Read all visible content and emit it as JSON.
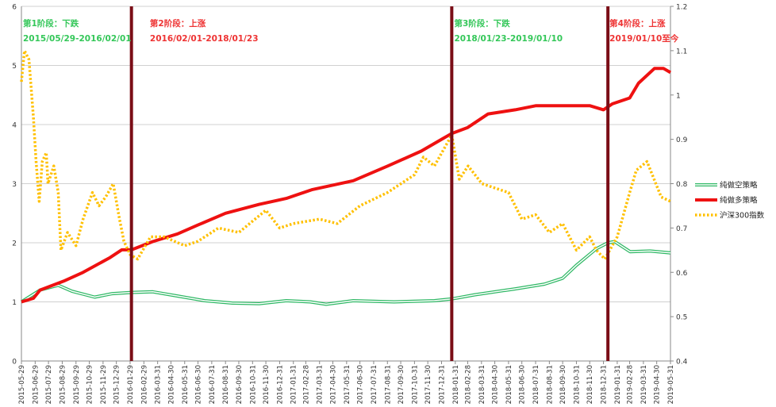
{
  "chart_data": {
    "type": "line",
    "y_left": {
      "ylim": [
        0,
        6
      ],
      "ticks": [
        "0",
        "1",
        "2",
        "3",
        "4",
        "5",
        "6"
      ]
    },
    "y_right": {
      "ylim": [
        0.4,
        1.2
      ],
      "ticks": [
        "0.4",
        "0.5",
        "0.6",
        "0.7",
        "0.8",
        "0.9",
        "1",
        "1.1",
        "1.2"
      ]
    },
    "x_range": [
      "2015-05-29",
      "2019-05-31"
    ],
    "x_ticks": [
      "2015-05-29",
      "2015-06-29",
      "2015-07-29",
      "2015-08-29",
      "2015-09-29",
      "2015-10-29",
      "2015-11-29",
      "2015-12-29",
      "2016-01-29",
      "2016-02-29",
      "2016-03-31",
      "2016-04-30",
      "2016-05-31",
      "2016-06-30",
      "2016-07-31",
      "2016-08-31",
      "2016-09-30",
      "2016-10-31",
      "2016-11-30",
      "2016-12-31",
      "2017-01-31",
      "2017-02-28",
      "2017-03-31",
      "2017-04-30",
      "2017-05-31",
      "2017-06-30",
      "2017-07-31",
      "2017-08-31",
      "2017-09-30",
      "2017-10-31",
      "2017-11-30",
      "2017-12-31",
      "2018-01-31",
      "2018-02-28",
      "2018-03-31",
      "2018-04-30",
      "2018-05-31",
      "2018-06-30",
      "2018-07-31",
      "2018-08-31",
      "2018-09-30",
      "2018-10-31",
      "2018-11-30",
      "2018-12-31",
      "2019-01-31",
      "2019-02-28",
      "2019-03-31",
      "2019-04-30",
      "2019-05-31"
    ],
    "grid": true,
    "legend_position": "right",
    "series": [
      {
        "name": "纯做空策略",
        "axis": "left",
        "color": "#2fb865",
        "style": "double-line",
        "points": [
          [
            "2015-05-29",
            1.0
          ],
          [
            "2015-07-10",
            1.2
          ],
          [
            "2015-08-20",
            1.28
          ],
          [
            "2015-09-20",
            1.18
          ],
          [
            "2015-11-10",
            1.08
          ],
          [
            "2015-12-20",
            1.14
          ],
          [
            "2016-02-01",
            1.16
          ],
          [
            "2016-03-20",
            1.17
          ],
          [
            "2016-05-15",
            1.1
          ],
          [
            "2016-07-15",
            1.02
          ],
          [
            "2016-09-15",
            0.98
          ],
          [
            "2016-11-15",
            0.97
          ],
          [
            "2017-01-15",
            1.02
          ],
          [
            "2017-03-10",
            1.0
          ],
          [
            "2017-04-15",
            0.96
          ],
          [
            "2017-06-15",
            1.02
          ],
          [
            "2017-09-15",
            1.0
          ],
          [
            "2017-12-15",
            1.02
          ],
          [
            "2018-01-23",
            1.05
          ],
          [
            "2018-03-15",
            1.12
          ],
          [
            "2018-06-15",
            1.22
          ],
          [
            "2018-08-20",
            1.3
          ],
          [
            "2018-09-30",
            1.4
          ],
          [
            "2018-10-31",
            1.62
          ],
          [
            "2018-12-15",
            1.9
          ],
          [
            "2019-01-10",
            2.0
          ],
          [
            "2019-01-25",
            2.02
          ],
          [
            "2019-03-01",
            1.85
          ],
          [
            "2019-04-15",
            1.86
          ],
          [
            "2019-05-31",
            1.83
          ]
        ]
      },
      {
        "name": "纯做多策略",
        "axis": "left",
        "color": "#ee1111",
        "style": "thick-line",
        "points": [
          [
            "2015-05-29",
            1.0
          ],
          [
            "2015-06-25",
            1.06
          ],
          [
            "2015-07-10",
            1.2
          ],
          [
            "2015-09-01",
            1.35
          ],
          [
            "2015-10-15",
            1.5
          ],
          [
            "2015-12-15",
            1.75
          ],
          [
            "2016-01-10",
            1.88
          ],
          [
            "2016-02-01",
            1.88
          ],
          [
            "2016-03-20",
            2.02
          ],
          [
            "2016-05-15",
            2.15
          ],
          [
            "2016-06-30",
            2.3
          ],
          [
            "2016-08-31",
            2.5
          ],
          [
            "2016-11-15",
            2.65
          ],
          [
            "2017-01-15",
            2.75
          ],
          [
            "2017-03-15",
            2.9
          ],
          [
            "2017-06-15",
            3.05
          ],
          [
            "2017-09-01",
            3.3
          ],
          [
            "2017-11-15",
            3.55
          ],
          [
            "2017-12-31",
            3.75
          ],
          [
            "2018-01-23",
            3.85
          ],
          [
            "2018-02-28",
            3.95
          ],
          [
            "2018-04-15",
            4.18
          ],
          [
            "2018-06-15",
            4.25
          ],
          [
            "2018-08-01",
            4.32
          ],
          [
            "2018-10-01",
            4.32
          ],
          [
            "2018-11-30",
            4.32
          ],
          [
            "2018-12-31",
            4.25
          ],
          [
            "2019-01-20",
            4.35
          ],
          [
            "2019-02-28",
            4.45
          ],
          [
            "2019-03-20",
            4.7
          ],
          [
            "2019-04-25",
            4.95
          ],
          [
            "2019-05-15",
            4.95
          ],
          [
            "2019-05-31",
            4.88
          ]
        ]
      },
      {
        "name": "沪深300指数",
        "axis": "right",
        "color": "#ffc000",
        "style": "dotted",
        "points": [
          [
            "2015-05-29",
            1.03
          ],
          [
            "2015-06-05",
            1.1
          ],
          [
            "2015-06-15",
            1.08
          ],
          [
            "2015-06-25",
            0.95
          ],
          [
            "2015-07-01",
            0.85
          ],
          [
            "2015-07-08",
            0.76
          ],
          [
            "2015-07-15",
            0.85
          ],
          [
            "2015-07-24",
            0.87
          ],
          [
            "2015-07-28",
            0.8
          ],
          [
            "2015-08-10",
            0.84
          ],
          [
            "2015-08-20",
            0.78
          ],
          [
            "2015-08-26",
            0.65
          ],
          [
            "2015-09-10",
            0.69
          ],
          [
            "2015-09-29",
            0.66
          ],
          [
            "2015-10-15",
            0.72
          ],
          [
            "2015-11-05",
            0.78
          ],
          [
            "2015-11-20",
            0.75
          ],
          [
            "2015-12-05",
            0.77
          ],
          [
            "2015-12-22",
            0.8
          ],
          [
            "2016-01-05",
            0.72
          ],
          [
            "2016-01-15",
            0.67
          ],
          [
            "2016-01-29",
            0.64
          ],
          [
            "2016-02-15",
            0.63
          ],
          [
            "2016-03-15",
            0.68
          ],
          [
            "2016-04-15",
            0.68
          ],
          [
            "2016-05-31",
            0.66
          ],
          [
            "2016-06-30",
            0.67
          ],
          [
            "2016-08-15",
            0.7
          ],
          [
            "2016-09-30",
            0.69
          ],
          [
            "2016-11-30",
            0.74
          ],
          [
            "2016-12-31",
            0.7
          ],
          [
            "2017-01-31",
            0.71
          ],
          [
            "2017-03-31",
            0.72
          ],
          [
            "2017-05-10",
            0.71
          ],
          [
            "2017-06-30",
            0.75
          ],
          [
            "2017-08-31",
            0.78
          ],
          [
            "2017-10-31",
            0.82
          ],
          [
            "2017-11-20",
            0.86
          ],
          [
            "2017-12-15",
            0.84
          ],
          [
            "2018-01-23",
            0.91
          ],
          [
            "2018-02-09",
            0.81
          ],
          [
            "2018-03-01",
            0.84
          ],
          [
            "2018-04-01",
            0.8
          ],
          [
            "2018-05-01",
            0.79
          ],
          [
            "2018-05-31",
            0.78
          ],
          [
            "2018-06-30",
            0.72
          ],
          [
            "2018-07-31",
            0.73
          ],
          [
            "2018-08-31",
            0.69
          ],
          [
            "2018-09-30",
            0.71
          ],
          [
            "2018-10-31",
            0.65
          ],
          [
            "2018-11-30",
            0.68
          ],
          [
            "2018-12-15",
            0.65
          ],
          [
            "2019-01-03",
            0.63
          ],
          [
            "2019-01-31",
            0.68
          ],
          [
            "2019-02-28",
            0.78
          ],
          [
            "2019-03-15",
            0.83
          ],
          [
            "2019-04-08",
            0.85
          ],
          [
            "2019-04-20",
            0.82
          ],
          [
            "2019-05-10",
            0.77
          ],
          [
            "2019-05-31",
            0.76
          ]
        ]
      }
    ],
    "phases": [
      {
        "divider": "2016-02-01",
        "label": "第1阶段：下跌",
        "range": "2015/05/29-2016/02/01",
        "color": "#34c759",
        "label_at": "2015-05-29"
      },
      {
        "divider": "2018-01-23",
        "label": "第2阶段：上涨",
        "range": "2016/02/01-2018/01/23",
        "color": "#ee3333",
        "label_at": "2016-03-10"
      },
      {
        "divider": "2019-01-10",
        "label": "第3阶段：下跌",
        "range": "2018/01/23-2019/01/10",
        "color": "#34c759",
        "label_at": "2018-01-25"
      },
      {
        "divider": null,
        "label": "第4阶段：上涨",
        "range": "2019/01/10至今",
        "color": "#ee3333",
        "label_at": "2019-01-10"
      }
    ]
  }
}
